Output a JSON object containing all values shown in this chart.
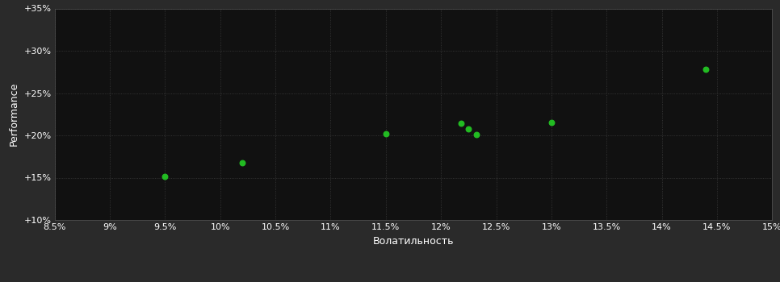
{
  "xlabel": "Волатильность",
  "ylabel": "Performance",
  "fig_bg_color": "#2a2a2a",
  "plot_bg_color": "#111111",
  "grid_color": "#3d3d3d",
  "text_color": "#ffffff",
  "dot_color": "#22bb22",
  "xlim": [
    0.085,
    0.15
  ],
  "ylim": [
    0.1,
    0.35
  ],
  "xticks": [
    0.085,
    0.09,
    0.095,
    0.1,
    0.105,
    0.11,
    0.115,
    0.12,
    0.125,
    0.13,
    0.135,
    0.14,
    0.145,
    0.15
  ],
  "yticks": [
    0.1,
    0.15,
    0.2,
    0.25,
    0.3,
    0.35
  ],
  "points": [
    [
      0.095,
      0.151
    ],
    [
      0.102,
      0.168
    ],
    [
      0.115,
      0.202
    ],
    [
      0.1218,
      0.214
    ],
    [
      0.1225,
      0.208
    ],
    [
      0.1232,
      0.201
    ],
    [
      0.13,
      0.215
    ],
    [
      0.144,
      0.278
    ]
  ]
}
